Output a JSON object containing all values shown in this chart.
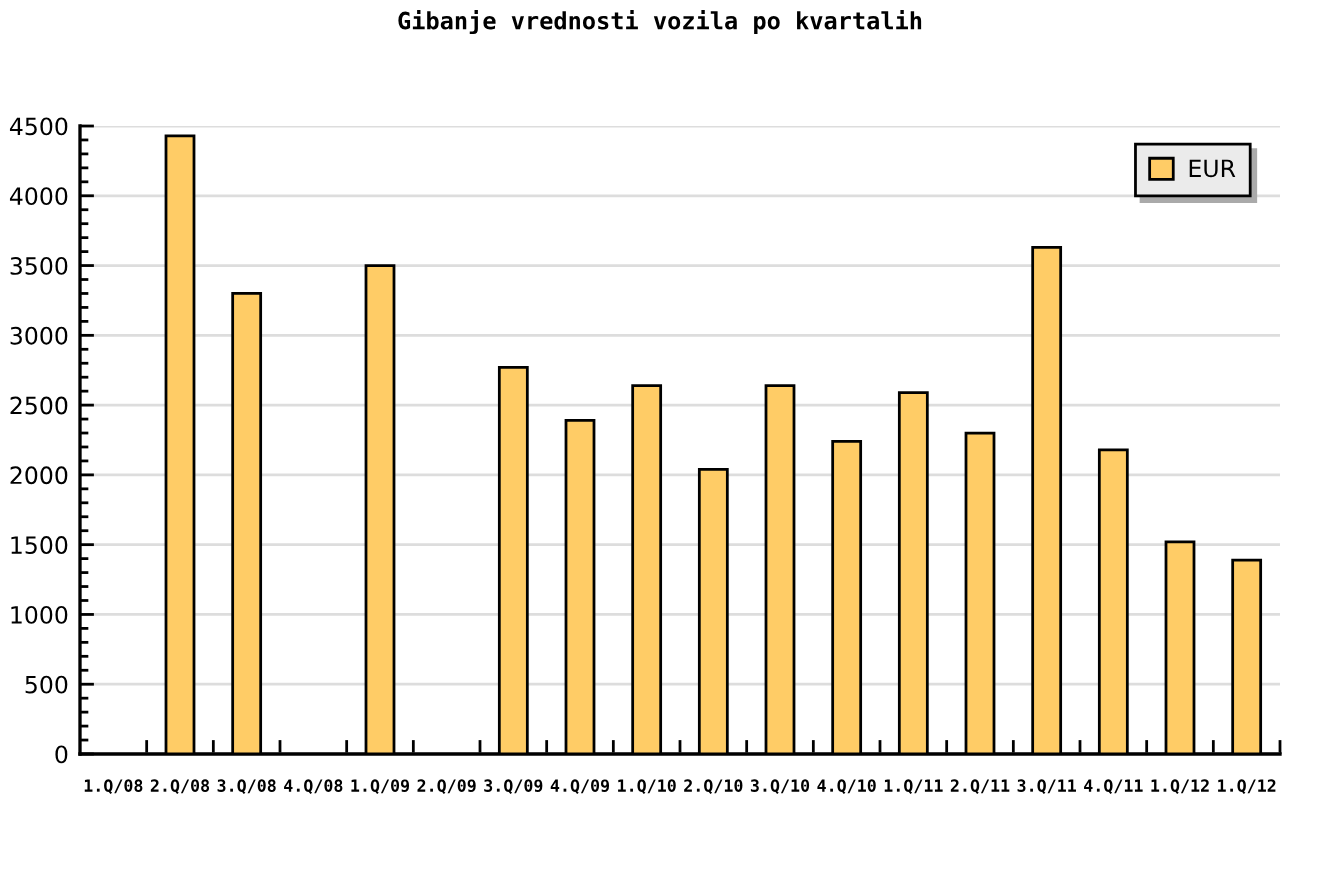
{
  "chart_data": {
    "type": "bar",
    "title": "Gibanje vrednosti vozila po kvartalih",
    "categories": [
      "1.Q/08",
      "2.Q/08",
      "3.Q/08",
      "4.Q/08",
      "1.Q/09",
      "2.Q/09",
      "3.Q/09",
      "4.Q/09",
      "1.Q/10",
      "2.Q/10",
      "3.Q/10",
      "4.Q/10",
      "1.Q/11",
      "2.Q/11",
      "3.Q/11",
      "4.Q/11",
      "1.Q/12",
      "1.Q/12"
    ],
    "series": [
      {
        "name": "EUR",
        "color": "#ffcc66",
        "values": [
          null,
          4430,
          3300,
          null,
          3500,
          null,
          2770,
          2390,
          2640,
          2040,
          2640,
          2240,
          2590,
          2300,
          3630,
          2180,
          1520,
          1390
        ]
      }
    ],
    "ylim": [
      0,
      4500
    ],
    "yticks": [
      0,
      500,
      1000,
      1500,
      2000,
      2500,
      3000,
      3500,
      4000,
      4500
    ],
    "grid": "y",
    "legend": "top right"
  }
}
